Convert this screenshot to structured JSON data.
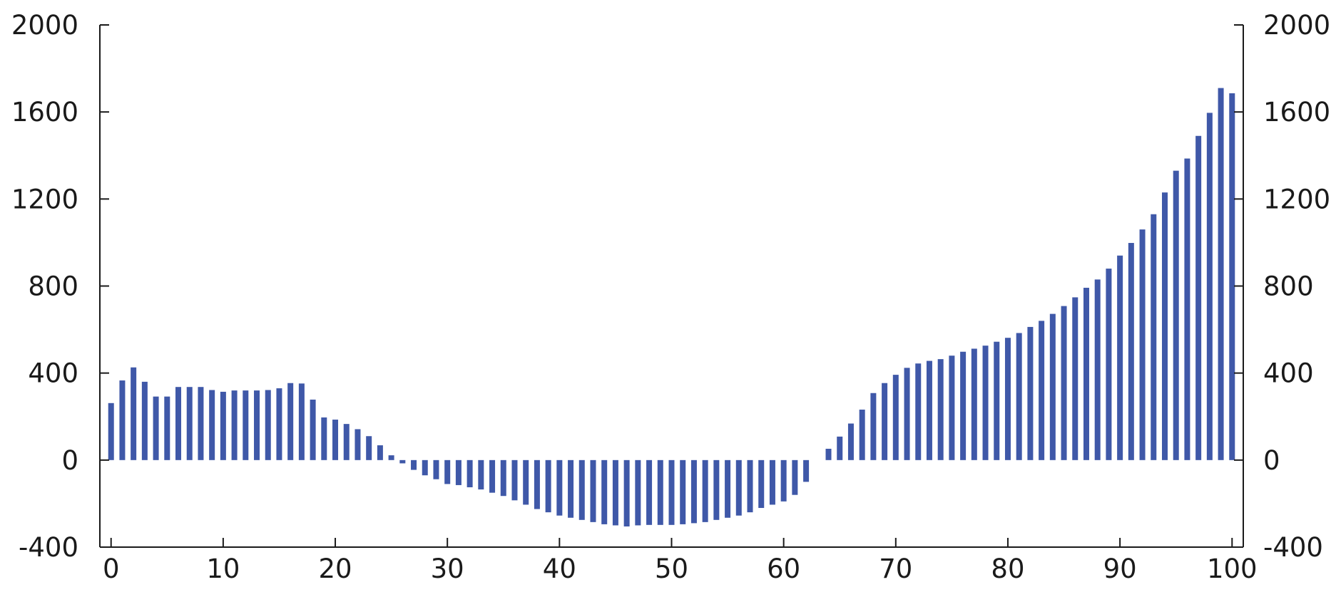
{
  "chart_data": {
    "type": "bar",
    "title": "",
    "xlabel": "",
    "ylabel": "",
    "bar_color": "#3f58a8",
    "grid": false,
    "legend": "none",
    "xlim": [
      -1,
      101
    ],
    "ylim": [
      -400,
      2000
    ],
    "x_ticks": [
      0,
      10,
      20,
      30,
      40,
      50,
      60,
      70,
      80,
      90,
      100
    ],
    "y_ticks_left": [
      -400,
      0,
      400,
      800,
      1200,
      1600,
      2000
    ],
    "y_ticks_right": [
      -400,
      0,
      400,
      800,
      1200,
      1600,
      2000
    ],
    "x": [
      0,
      1,
      2,
      3,
      4,
      5,
      6,
      7,
      8,
      9,
      10,
      11,
      12,
      13,
      14,
      15,
      16,
      17,
      18,
      19,
      20,
      21,
      22,
      23,
      24,
      25,
      26,
      27,
      28,
      29,
      30,
      31,
      32,
      33,
      34,
      35,
      36,
      37,
      38,
      39,
      40,
      41,
      42,
      43,
      44,
      45,
      46,
      47,
      48,
      49,
      50,
      51,
      52,
      53,
      54,
      55,
      56,
      57,
      58,
      59,
      60,
      61,
      62,
      63,
      64,
      65,
      66,
      67,
      68,
      69,
      70,
      71,
      72,
      73,
      74,
      75,
      76,
      77,
      78,
      79,
      80,
      81,
      82,
      83,
      84,
      85,
      86,
      87,
      88,
      89,
      90,
      91,
      92,
      93,
      94,
      95,
      96,
      97,
      98,
      99,
      100
    ],
    "values": [
      262,
      366,
      426,
      360,
      292,
      292,
      336,
      336,
      336,
      322,
      314,
      320,
      320,
      320,
      322,
      330,
      354,
      352,
      278,
      196,
      186,
      166,
      142,
      110,
      68,
      22,
      -15,
      -45,
      -70,
      -88,
      -110,
      -115,
      -125,
      -135,
      -150,
      -165,
      -185,
      -205,
      -225,
      -240,
      -255,
      -265,
      -275,
      -285,
      -295,
      -300,
      -305,
      -300,
      -298,
      -298,
      -298,
      -295,
      -290,
      -285,
      -275,
      -265,
      -255,
      -240,
      -220,
      -205,
      -190,
      -160,
      -100,
      0,
      52,
      108,
      168,
      232,
      308,
      354,
      392,
      424,
      444,
      456,
      464,
      480,
      498,
      512,
      526,
      544,
      562,
      584,
      612,
      640,
      672,
      708,
      748,
      792,
      830,
      880,
      940,
      998,
      1060,
      1130,
      1230,
      1330,
      1386,
      1490,
      1596,
      1710,
      1686
    ]
  }
}
